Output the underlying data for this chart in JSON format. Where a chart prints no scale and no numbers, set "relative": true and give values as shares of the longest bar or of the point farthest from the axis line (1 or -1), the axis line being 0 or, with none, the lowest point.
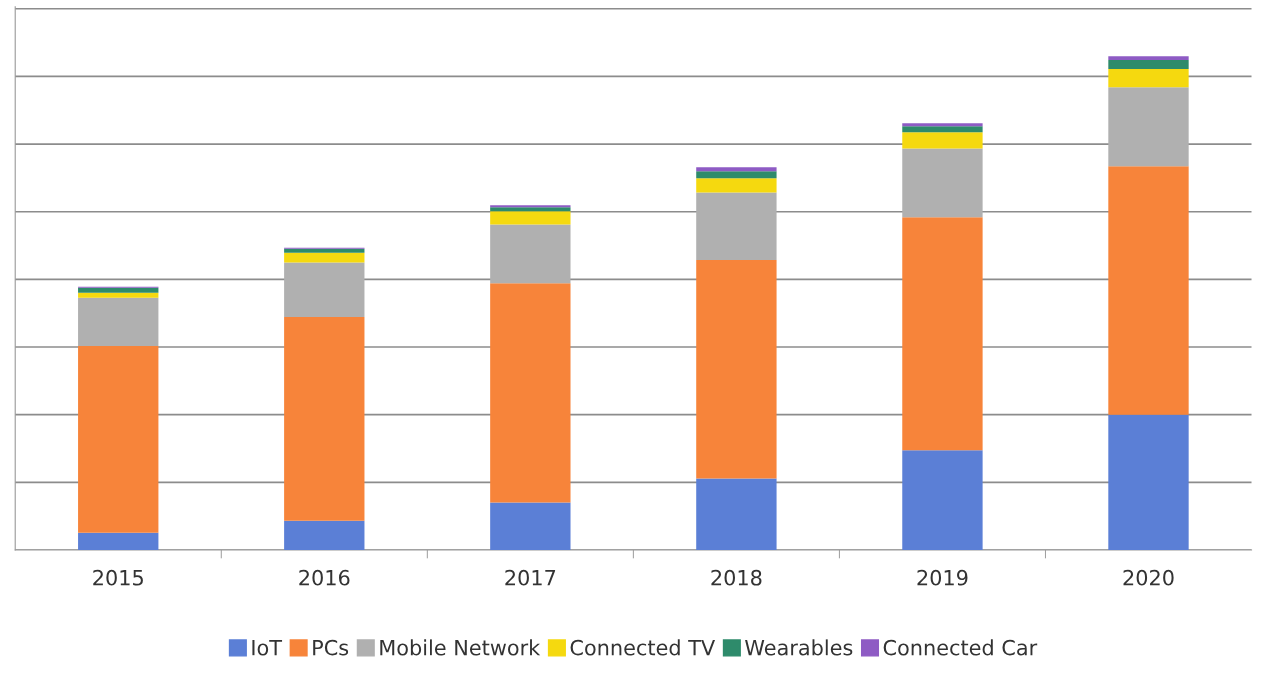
{
  "chart_data": {
    "type": "bar",
    "stacked": true,
    "relative": true,
    "grid": "y",
    "legend": "bottom",
    "categories": [
      "2015",
      "2016",
      "2017",
      "2018",
      "2019",
      "2020"
    ],
    "series": [
      {
        "name": "IoT",
        "color": "#5b7fd6",
        "values": [
          0.035,
          0.059,
          0.096,
          0.145,
          0.202,
          0.274
        ]
      },
      {
        "name": "PCs",
        "color": "#f7843a",
        "values": [
          0.378,
          0.413,
          0.444,
          0.442,
          0.472,
          0.503
        ]
      },
      {
        "name": "Mobile Network",
        "color": "#b0b0b0",
        "values": [
          0.098,
          0.11,
          0.119,
          0.137,
          0.139,
          0.16
        ]
      },
      {
        "name": "Connected TV",
        "color": "#f5d90f",
        "values": [
          0.01,
          0.02,
          0.027,
          0.029,
          0.033,
          0.037
        ]
      },
      {
        "name": "Wearables",
        "color": "#2e8b6b",
        "values": [
          0.01,
          0.008,
          0.008,
          0.014,
          0.012,
          0.018
        ]
      },
      {
        "name": "Connected Car",
        "color": "#8e5bc4",
        "values": [
          0.002,
          0.002,
          0.004,
          0.008,
          0.006,
          0.008
        ]
      }
    ]
  }
}
